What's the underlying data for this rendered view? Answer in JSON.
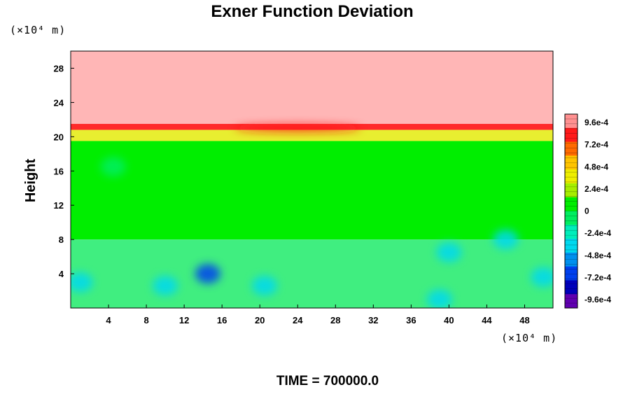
{
  "chart_data": {
    "type": "heatmap",
    "title": "Exner Function Deviation",
    "ylabel": "Height",
    "x_unit_label": "(×10⁴ m)",
    "y_unit_label": "(×10⁴ m)",
    "xlim": [
      0,
      51
    ],
    "ylim": [
      0,
      30
    ],
    "x_ticks": [
      "4",
      "8",
      "12",
      "16",
      "20",
      "24",
      "28",
      "32",
      "36",
      "40",
      "44",
      "48"
    ],
    "x_tick_values": [
      4,
      8,
      12,
      16,
      20,
      24,
      28,
      32,
      36,
      40,
      44,
      48
    ],
    "y_ticks": [
      "4",
      "8",
      "12",
      "16",
      "20",
      "24",
      "28"
    ],
    "y_tick_values": [
      4,
      8,
      12,
      16,
      20,
      24,
      28
    ],
    "colorbar": {
      "labels": [
        "9.6e-4",
        "7.2e-4",
        "4.8e-4",
        "2.4e-4",
        "0",
        "-2.4e-4",
        "-4.8e-4",
        "-7.2e-4",
        "-9.6e-4"
      ],
      "values": [
        0.00096,
        0.00072,
        0.00048,
        0.00024,
        0,
        -0.00024,
        -0.00048,
        -0.00072,
        -0.00096
      ],
      "colors_top_to_bottom": [
        "#ff9090",
        "#ff1a1a",
        "#ff6a00",
        "#ffc400",
        "#eeee00",
        "#a6ee00",
        "#00ee00",
        "#00ee60",
        "#00eebb",
        "#00d8ee",
        "#0090ee",
        "#0040ee",
        "#0000bb",
        "#6000b0"
      ]
    },
    "field_regions": [
      {
        "y_range": [
          21.5,
          30
        ],
        "value": 0.00096,
        "color": "#ffb6b6"
      },
      {
        "y_range": [
          20.8,
          21.5
        ],
        "value": 0.00072,
        "color": "#ff2a2a"
      },
      {
        "y_range": [
          19.5,
          20.8
        ],
        "value": 0.00024,
        "color": "#e8ee30"
      },
      {
        "y_range": [
          8,
          19.5
        ],
        "value": 0,
        "color": "#00ee00"
      },
      {
        "y_range": [
          0,
          8
        ],
        "value": -0.00024,
        "color": "#40ee80"
      }
    ],
    "features": [
      {
        "x": 14.5,
        "y": 4.0,
        "value": -0.0006
      },
      {
        "x": 10.0,
        "y": 2.6,
        "value": -0.0004
      },
      {
        "x": 20.5,
        "y": 2.6,
        "value": -0.0003
      },
      {
        "x": 50.0,
        "y": 3.6,
        "value": -0.0004
      },
      {
        "x": 1.0,
        "y": 3.0,
        "value": -0.0003
      },
      {
        "x": 40.0,
        "y": 6.5,
        "value": -0.0003
      },
      {
        "x": 39.0,
        "y": 1.0,
        "value": -0.0003
      },
      {
        "x": 4.5,
        "y": 16.5,
        "value": -0.0001
      },
      {
        "x": 46.0,
        "y": 8.0,
        "value": -0.0003
      },
      {
        "x": 24.0,
        "y": 21.0,
        "value": 0.0008
      }
    ]
  },
  "footer": {
    "time_label": "TIME = 700000.0"
  }
}
